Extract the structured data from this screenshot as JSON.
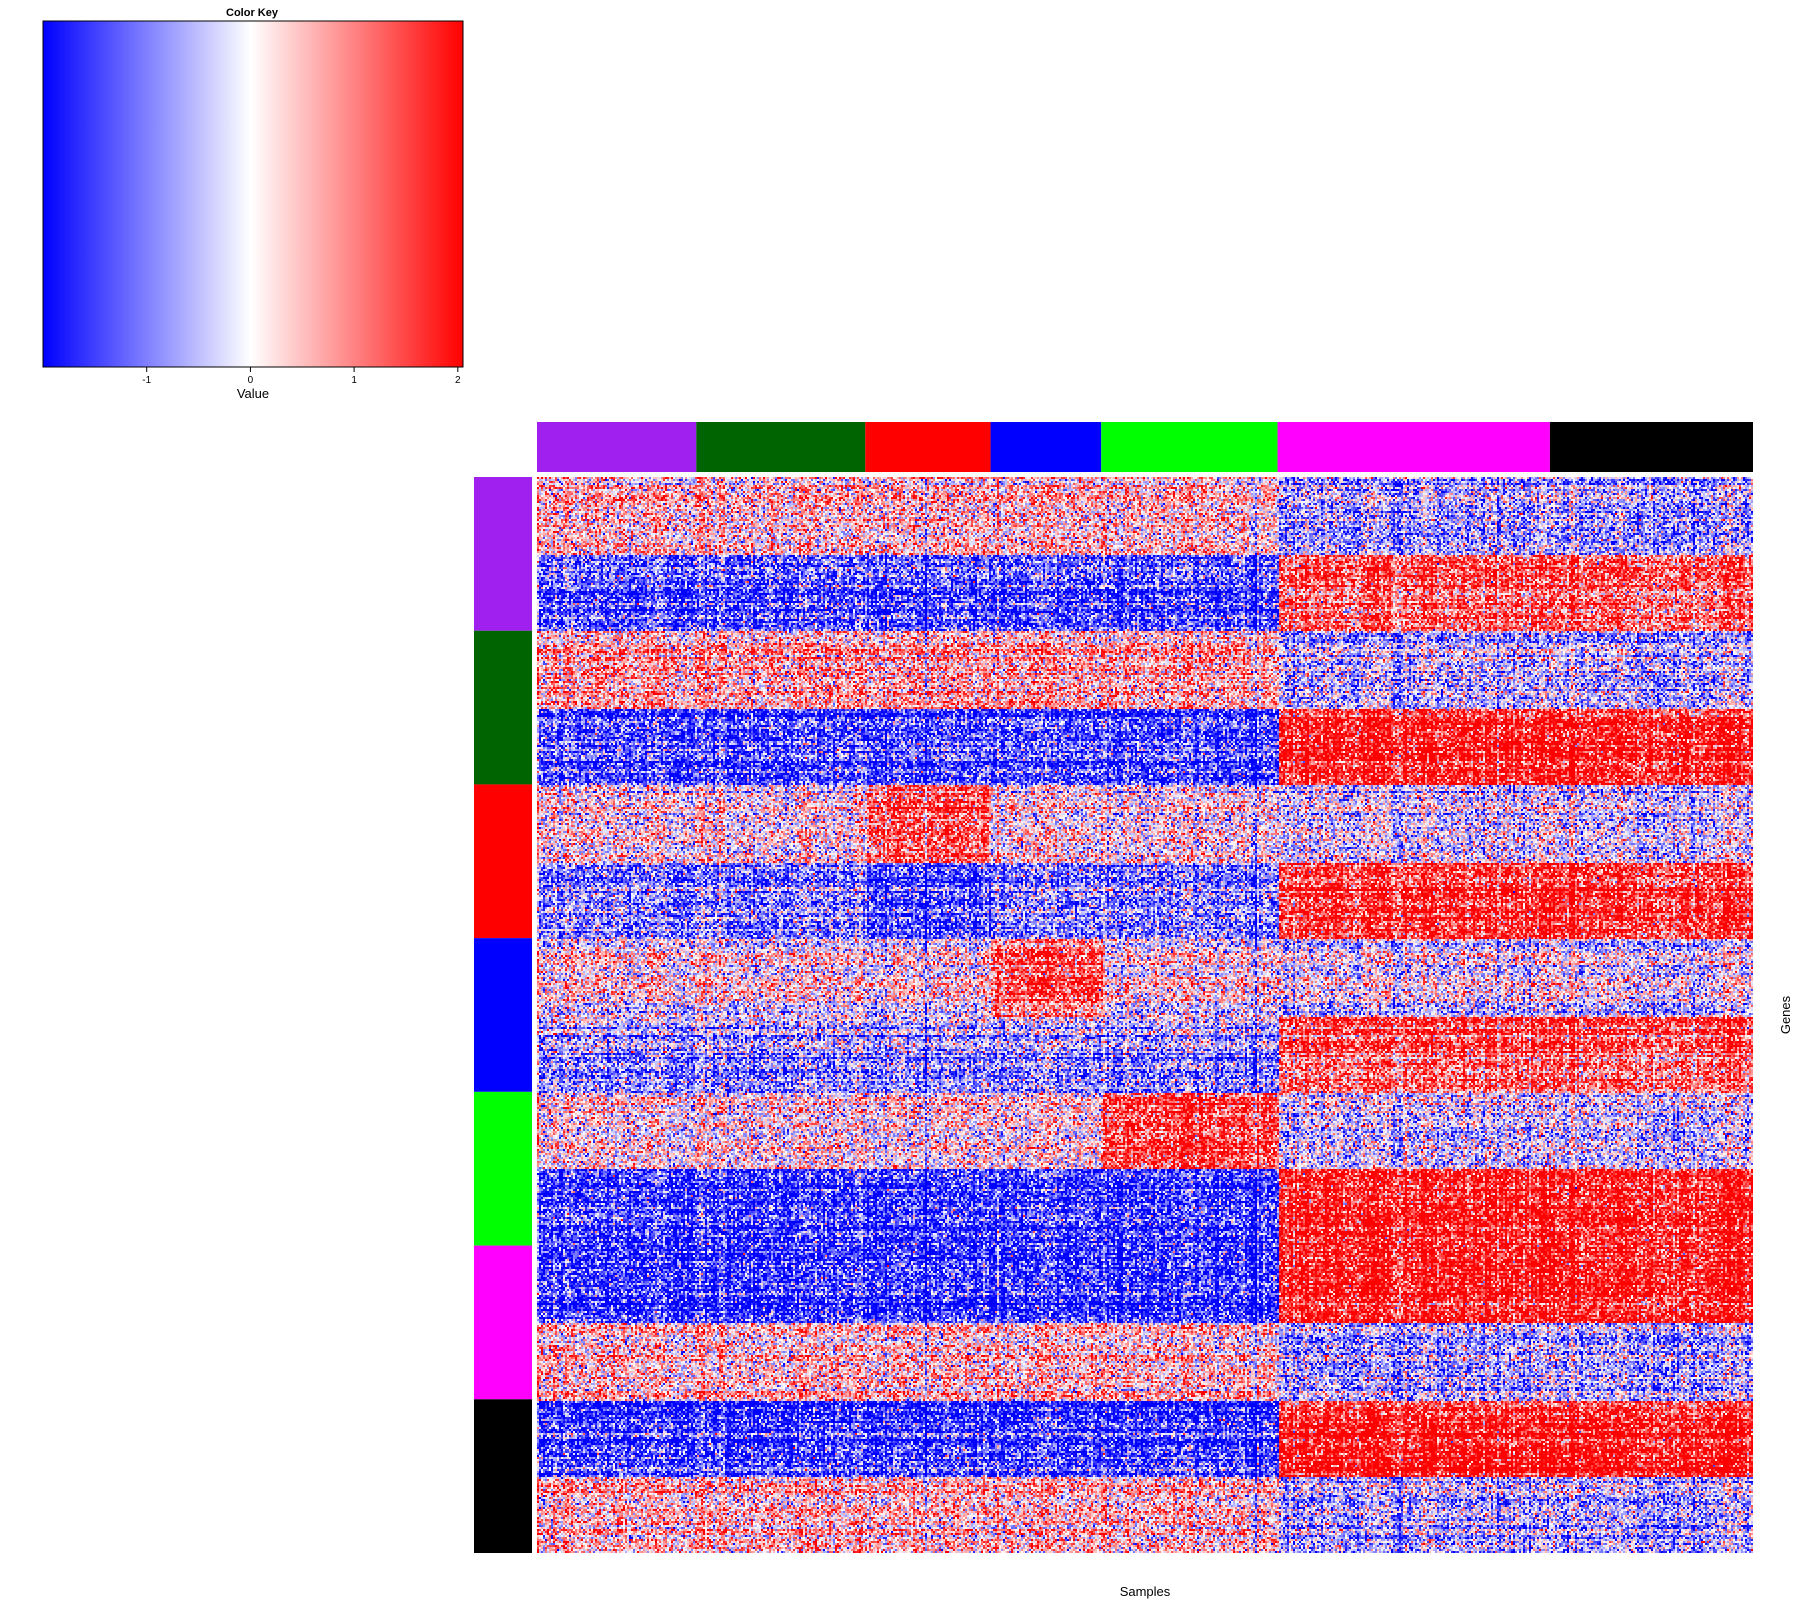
{
  "chart_data": {
    "type": "heatmap",
    "color_key": {
      "title": "Color Key",
      "xlabel": "Value",
      "range": [
        -2.0,
        2.05
      ],
      "ticks": [
        -1,
        0,
        1,
        2
      ],
      "colors": {
        "low": "#0000ff",
        "mid": "#ffffff",
        "high": "#ff0000"
      }
    },
    "xlabel": "Samples",
    "ylabel": "Genes",
    "column_groups": [
      {
        "color": "#a020f0",
        "width": 0.131
      },
      {
        "color": "#006400",
        "width": 0.139
      },
      {
        "color": "#ff0000",
        "width": 0.103
      },
      {
        "color": "#0000ff",
        "width": 0.091
      },
      {
        "color": "#00ff00",
        "width": 0.145
      },
      {
        "color": "#ff00ff",
        "width": 0.224
      },
      {
        "color": "#000000",
        "width": 0.167
      }
    ],
    "row_groups": [
      {
        "color": "#a020f0"
      },
      {
        "color": "#006400"
      },
      {
        "color": "#ff0000"
      },
      {
        "color": "#0000ff"
      },
      {
        "color": "#00ff00"
      },
      {
        "color": "#ff00ff"
      },
      {
        "color": "#000000"
      }
    ],
    "column_clusters": [
      "left",
      "right"
    ],
    "left_cluster_groups": 5,
    "block_means": [
      [
        0.5,
        -1.3,
        -0.6,
        1.3
      ],
      [
        0.6,
        -1.5,
        -0.6,
        1.8
      ],
      [
        0.1,
        -1.0,
        -0.3,
        1.6
      ],
      [
        0.2,
        -0.8,
        -0.1,
        1.2
      ],
      [
        0.2,
        -1.6,
        -0.3,
        1.8
      ],
      [
        -1.6,
        0.5,
        1.9,
        -0.6
      ],
      [
        -1.6,
        0.5,
        1.9,
        -0.6
      ]
    ],
    "highlights": [
      {
        "row_group": 2,
        "sub_row": 0,
        "col_group": 2,
        "value": 1.3
      },
      {
        "row_group": 2,
        "sub_row": 1,
        "col_group": 2,
        "value": -1.5
      },
      {
        "row_group": 3,
        "sub_row": 0,
        "col_group": 3,
        "value": 1.4
      },
      {
        "row_group": 4,
        "sub_row": 0,
        "col_group": 4,
        "value": 1.6
      }
    ]
  }
}
